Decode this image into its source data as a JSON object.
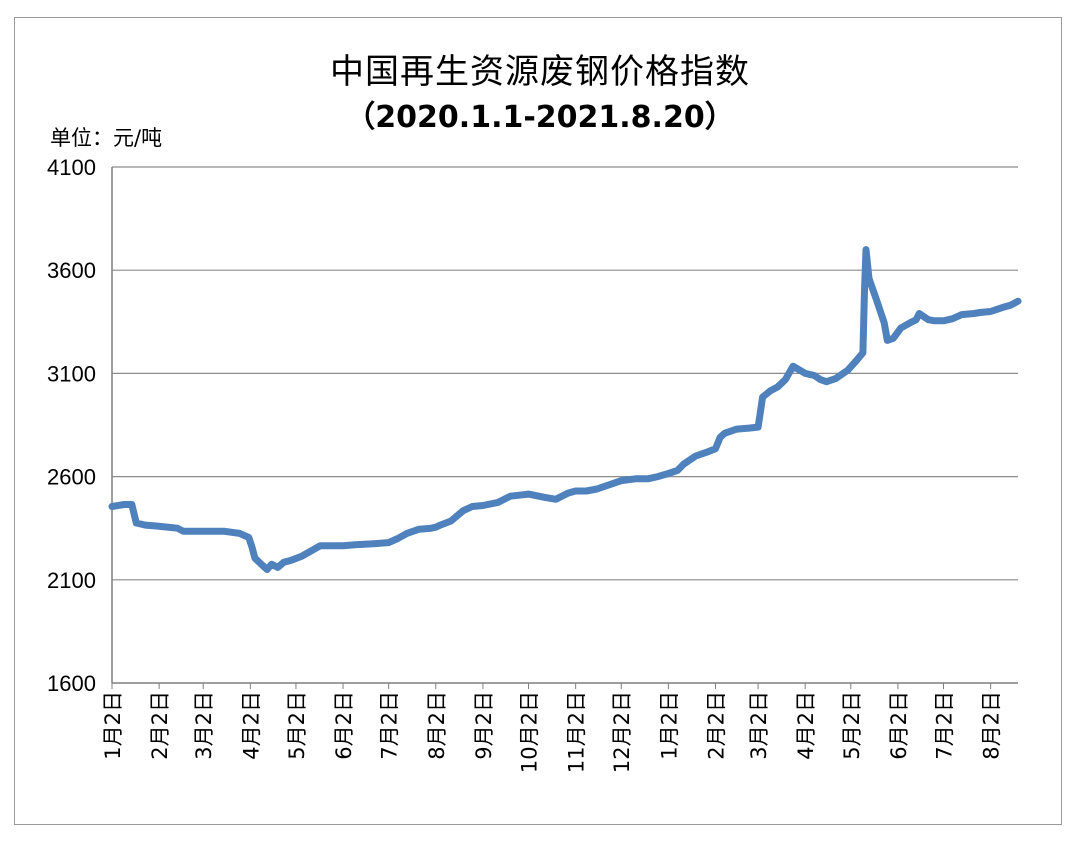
{
  "chart_data": {
    "type": "line",
    "title": "中国再生资源废钢价格指数",
    "subtitle": "（2020.1.1-2021.8.20）",
    "unit_label": "单位：元/吨",
    "ylim": [
      1600,
      4100
    ],
    "yticks": [
      "1600",
      "2100",
      "2600",
      "3100",
      "3600",
      "4100"
    ],
    "x_tick_labels": [
      "1月2日",
      "2月2日",
      "3月2日",
      "4月2日",
      "5月2日",
      "6月2日",
      "7月2日",
      "8月2日",
      "9月2日",
      "10月2日",
      "11月2日",
      "12月2日",
      "1月2日",
      "2月2日",
      "3月2日",
      "4月2日",
      "5月2日",
      "6月2日",
      "7月2日",
      "8月2日"
    ],
    "grid": "horizontal",
    "line_color": "#4F81BD",
    "series": [
      {
        "x": [
          "2020-01-02",
          "2020-01-10",
          "2020-01-15",
          "2020-01-18",
          "2020-01-24",
          "2020-02-01",
          "2020-02-14",
          "2020-02-18",
          "2020-02-26",
          "2020-03-02",
          "2020-03-16",
          "2020-03-26",
          "2020-04-01",
          "2020-04-03",
          "2020-04-05",
          "2020-04-10",
          "2020-04-13",
          "2020-04-16",
          "2020-04-20",
          "2020-04-24",
          "2020-04-29",
          "2020-05-06",
          "2020-05-12",
          "2020-05-18",
          "2020-05-26",
          "2020-06-02",
          "2020-06-10",
          "2020-06-22",
          "2020-07-02",
          "2020-07-08",
          "2020-07-14",
          "2020-07-22",
          "2020-07-30",
          "2020-08-02",
          "2020-08-05",
          "2020-08-12",
          "2020-08-20",
          "2020-08-26",
          "2020-09-02",
          "2020-09-12",
          "2020-09-20",
          "2020-09-26",
          "2020-10-02",
          "2020-10-12",
          "2020-10-20",
          "2020-10-28",
          "2020-11-02",
          "2020-11-09",
          "2020-11-16",
          "2020-11-26",
          "2020-12-02",
          "2020-12-12",
          "2020-12-20",
          "2020-12-26",
          "2021-01-02",
          "2021-01-08",
          "2021-01-12",
          "2021-01-20",
          "2021-01-28",
          "2021-02-02",
          "2021-02-05",
          "2021-02-08",
          "2021-02-16",
          "2021-02-24",
          "2021-03-02",
          "2021-03-05",
          "2021-03-10",
          "2021-03-15",
          "2021-03-20",
          "2021-03-25",
          "2021-04-02",
          "2021-04-08",
          "2021-04-12",
          "2021-04-16",
          "2021-04-22",
          "2021-04-30",
          "2021-05-06",
          "2021-05-10",
          "2021-05-11",
          "2021-05-12",
          "2021-05-14",
          "2021-05-19",
          "2021-05-24",
          "2021-05-26",
          "2021-05-30",
          "2021-06-04",
          "2021-06-10",
          "2021-06-14",
          "2021-06-16",
          "2021-06-22",
          "2021-06-26",
          "2021-07-02",
          "2021-07-08",
          "2021-07-14",
          "2021-07-22",
          "2021-07-26",
          "2021-08-02",
          "2021-08-06",
          "2021-08-10",
          "2021-08-15",
          "2021-08-20"
        ],
        "y": [
          2455,
          2465,
          2465,
          2375,
          2365,
          2360,
          2350,
          2335,
          2335,
          2335,
          2335,
          2325,
          2305,
          2260,
          2205,
          2170,
          2150,
          2175,
          2160,
          2185,
          2195,
          2215,
          2240,
          2265,
          2265,
          2265,
          2270,
          2275,
          2280,
          2300,
          2325,
          2345,
          2350,
          2355,
          2365,
          2385,
          2435,
          2455,
          2460,
          2475,
          2505,
          2510,
          2515,
          2500,
          2490,
          2520,
          2530,
          2530,
          2540,
          2565,
          2580,
          2590,
          2590,
          2600,
          2615,
          2630,
          2660,
          2700,
          2720,
          2735,
          2790,
          2810,
          2830,
          2835,
          2840,
          2985,
          3015,
          3035,
          3070,
          3135,
          3100,
          3090,
          3070,
          3060,
          3075,
          3115,
          3165,
          3200,
          3500,
          3700,
          3560,
          3455,
          3345,
          3260,
          3270,
          3320,
          3345,
          3360,
          3390,
          3360,
          3355,
          3355,
          3365,
          3385,
          3390,
          3395,
          3400,
          3410,
          3420,
          3430,
          3450
        ]
      }
    ]
  }
}
